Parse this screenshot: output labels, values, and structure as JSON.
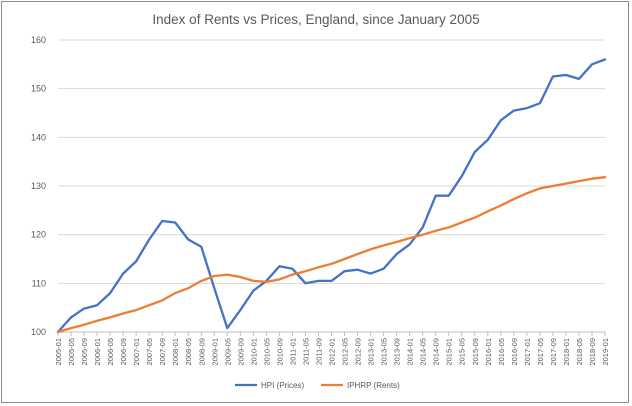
{
  "chart_data": {
    "type": "line",
    "title": "Index of Rents vs Prices, England, since January 2005",
    "xlabel": "",
    "ylabel": "",
    "ylim": [
      100,
      160
    ],
    "yticks": [
      100,
      110,
      120,
      130,
      140,
      150,
      160
    ],
    "grid": true,
    "legend_position": "bottom",
    "x": [
      "2005-01",
      "2005-05",
      "2005-09",
      "2006-01",
      "2006-05",
      "2006-09",
      "2007-01",
      "2007-05",
      "2007-09",
      "2008-01",
      "2008-05",
      "2008-09",
      "2009-01",
      "2009-05",
      "2009-09",
      "2010-01",
      "2010-05",
      "2010-09",
      "2011-01",
      "2011-05",
      "2011-09",
      "2012-01",
      "2012-05",
      "2012-09",
      "2013-01",
      "2013-05",
      "2013-09",
      "2014-01",
      "2014-05",
      "2014-09",
      "2015-01",
      "2015-05",
      "2015-09",
      "2016-01",
      "2016-05",
      "2016-09",
      "2017-01",
      "2017-05",
      "2017-09",
      "2018-01",
      "2018-05",
      "2018-09",
      "2019-01"
    ],
    "series": [
      {
        "name": "HPI (Prices)",
        "color": "#4472c4",
        "values": [
          100.0,
          103.0,
          104.8,
          105.5,
          108.0,
          112.0,
          114.5,
          119.0,
          122.8,
          122.5,
          119.0,
          117.5,
          109.0,
          100.8,
          104.5,
          108.5,
          110.5,
          113.5,
          113.0,
          110.0,
          110.5,
          110.5,
          112.5,
          112.8,
          112.0,
          113.0,
          116.0,
          118.0,
          121.5,
          128.0,
          128.0,
          132.0,
          137.0,
          139.5,
          143.5,
          145.5,
          146.0,
          147.0,
          152.5,
          152.8,
          152.0,
          155.0,
          156.0
        ]
      },
      {
        "name": "IPHRP (Rents)",
        "color": "#ed7d31",
        "values": [
          100.0,
          100.8,
          101.5,
          102.3,
          103.0,
          103.8,
          104.5,
          105.5,
          106.5,
          108.0,
          109.0,
          110.5,
          111.5,
          111.8,
          111.3,
          110.5,
          110.3,
          110.8,
          111.8,
          112.5,
          113.3,
          114.0,
          115.0,
          116.0,
          117.0,
          117.8,
          118.5,
          119.3,
          120.0,
          120.8,
          121.5,
          122.5,
          123.5,
          124.8,
          126.0,
          127.3,
          128.5,
          129.5,
          130.0,
          130.5,
          131.0,
          131.5,
          131.8
        ]
      }
    ]
  }
}
